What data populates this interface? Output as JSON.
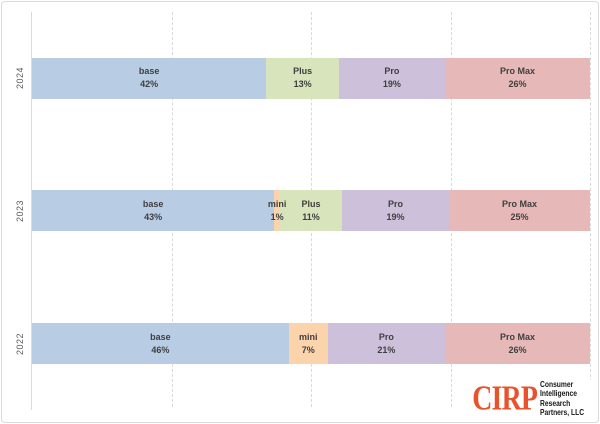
{
  "chart_data": {
    "type": "bar",
    "variant": "horizontal-stacked-percent",
    "title": "",
    "xlabel": "",
    "ylabel": "",
    "xlim": [
      0,
      100
    ],
    "grid": "vertical dashed lines every 25%",
    "gridlines_pct": [
      25,
      50,
      75,
      100
    ],
    "legend_position": "none (labels inside segments)",
    "categories": [
      "2024",
      "2023",
      "2022"
    ],
    "colors": {
      "base": "#B8CCE4",
      "mini": "#FBD4AC",
      "Plus": "#D7E4BC",
      "Pro": "#CCC0DA",
      "Pro Max": "#E6B9B8"
    },
    "rows": [
      {
        "year": "2024",
        "segments": [
          {
            "label": "base",
            "value": 42,
            "pct_label": "42%"
          },
          {
            "label": "Plus",
            "value": 13,
            "pct_label": "13%"
          },
          {
            "label": "Pro",
            "value": 19,
            "pct_label": "19%"
          },
          {
            "label": "Pro Max",
            "value": 26,
            "pct_label": "26%"
          }
        ]
      },
      {
        "year": "2023",
        "segments": [
          {
            "label": "base",
            "value": 43,
            "pct_label": "43%"
          },
          {
            "label": "mini",
            "value": 1,
            "pct_label": "1%"
          },
          {
            "label": "Plus",
            "value": 11,
            "pct_label": "11%"
          },
          {
            "label": "Pro",
            "value": 19,
            "pct_label": "19%"
          },
          {
            "label": "Pro Max",
            "value": 25,
            "pct_label": "25%"
          }
        ]
      },
      {
        "year": "2022",
        "segments": [
          {
            "label": "base",
            "value": 46,
            "pct_label": "46%"
          },
          {
            "label": "mini",
            "value": 7,
            "pct_label": "7%"
          },
          {
            "label": "Pro",
            "value": 21,
            "pct_label": "21%"
          },
          {
            "label": "Pro Max",
            "value": 26,
            "pct_label": "26%"
          }
        ]
      }
    ]
  },
  "logo": {
    "name": "CIRP",
    "color": "#E8532C",
    "lines": [
      "Consumer",
      "Intelligence",
      "Research",
      "Partners, LLC"
    ]
  }
}
